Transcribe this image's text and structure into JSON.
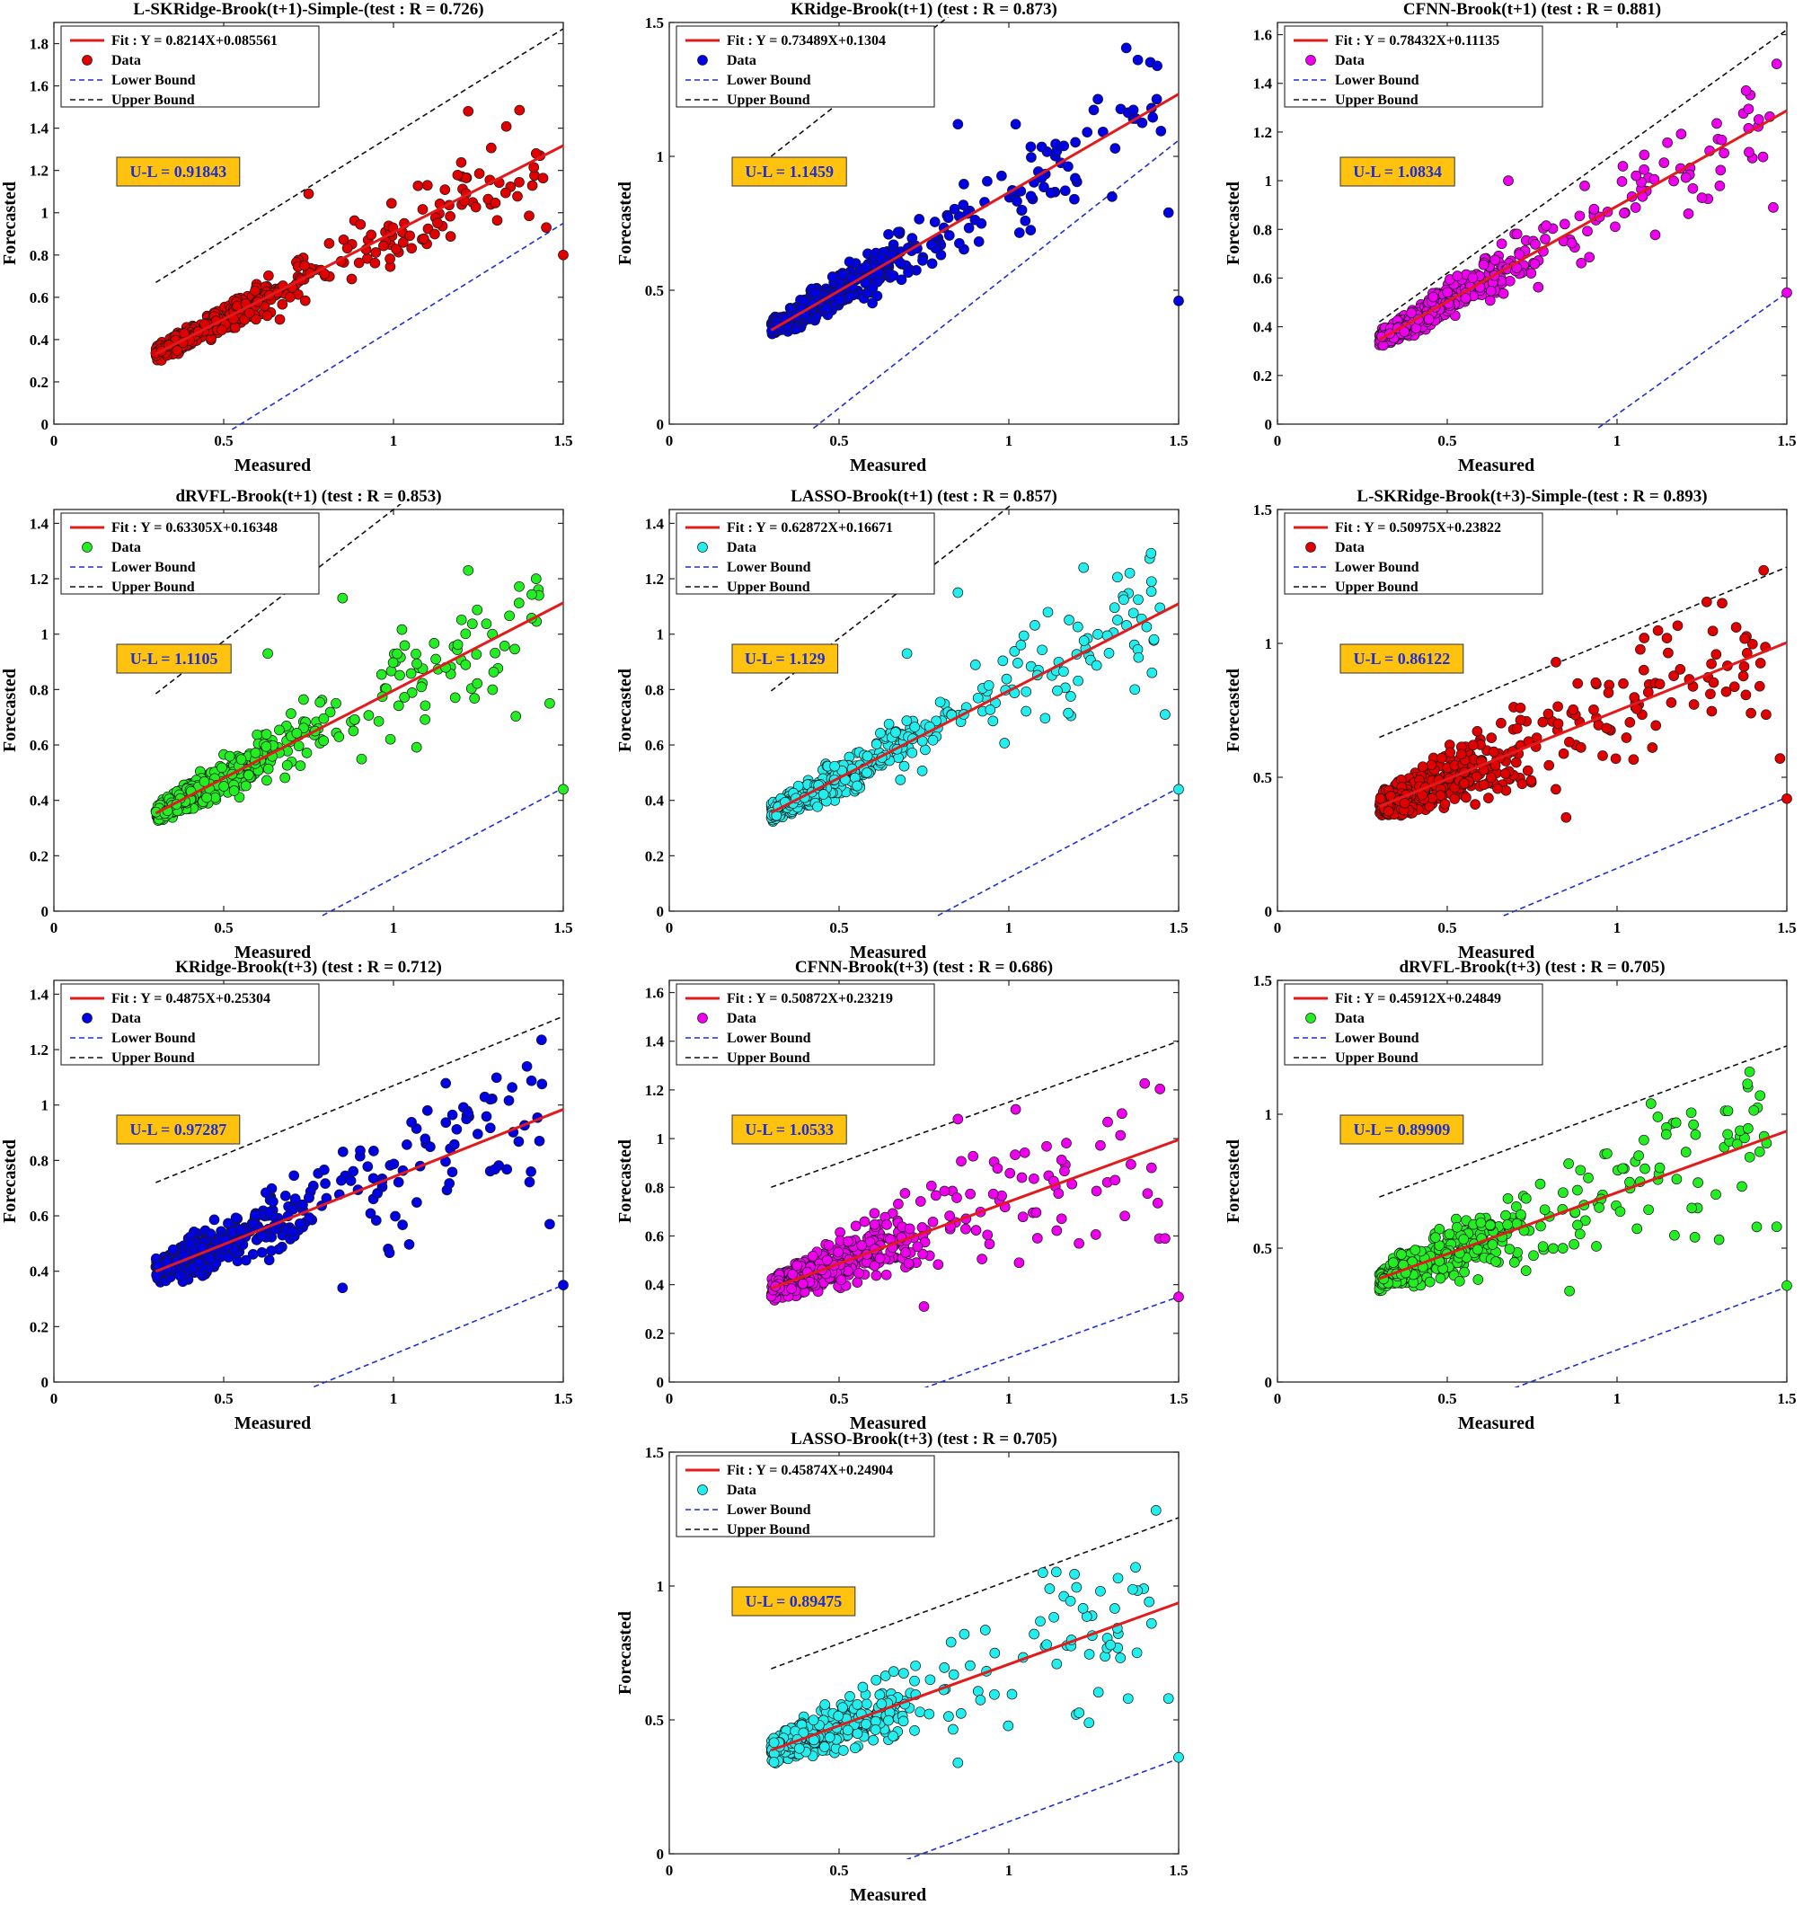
{
  "chart_data": [
    {
      "type": "scatter",
      "title": "L-SKRidge-Brook(t+1)-Simple-(test : R = 0.726)",
      "xlabel": "Measured",
      "ylabel": "Forecasted",
      "xlim": [
        0,
        1.5
      ],
      "ylim": [
        0,
        1.9
      ],
      "xticks": [
        "0",
        "0.5",
        "1",
        "1.5"
      ],
      "yticks": [
        "0",
        "0.2",
        "0.4",
        "0.6",
        "0.8",
        "1",
        "1.2",
        "1.4",
        "1.6",
        "1.8"
      ],
      "fit": {
        "slope": 0.8214,
        "intercept": 0.085561,
        "label": "Fit :  Y = 0.8214X+0.085561"
      },
      "lower_bound": {
        "slope": 1.0,
        "intercept": -0.55
      },
      "upper_bound": {
        "slope": 1.0,
        "intercept": 0.37
      },
      "band_x_start": 0.3,
      "ul_label": "U-L = 0.91843",
      "point_color": "#e00000",
      "spread": 1.0,
      "outliers": [
        [
          1.22,
          1.48
        ],
        [
          1.42,
          1.28
        ],
        [
          1.5,
          0.8
        ],
        [
          1.45,
          0.93
        ],
        [
          0.75,
          1.09
        ],
        [
          1.1,
          1.13
        ]
      ],
      "legend": [
        "Fit :  Y = 0.8214X+0.085561",
        "Data",
        "Lower Bound",
        "Upper Bound"
      ]
    },
    {
      "type": "scatter",
      "title": "KRidge-Brook(t+1) (test : R = 0.873)",
      "xlabel": "Measured",
      "ylabel": "Forecasted",
      "xlim": [
        0,
        1.5
      ],
      "ylim": [
        0,
        1.5
      ],
      "xticks": [
        "0",
        "0.5",
        "1",
        "1.5"
      ],
      "yticks": [
        "0",
        "0.5",
        "1",
        "1.5"
      ],
      "fit": {
        "slope": 0.73489,
        "intercept": 0.1304,
        "label": "Fit :  Y = 0.73489X+0.1304"
      },
      "lower_bound": {
        "slope": 1.0,
        "intercept": -0.44
      },
      "upper_bound": {
        "slope": 1.0,
        "intercept": 0.7
      },
      "band_x_start": 0.3,
      "ul_label": "U-L = 1.1459",
      "point_color": "#0000e6",
      "spread": 1.0,
      "outliers": [
        [
          1.5,
          0.46
        ],
        [
          1.47,
          0.79
        ],
        [
          1.42,
          1.18
        ],
        [
          1.38,
          1.36
        ],
        [
          0.85,
          1.12
        ],
        [
          1.02,
          1.12
        ]
      ],
      "legend": [
        "Fit :  Y = 0.73489X+0.1304",
        "Data",
        "Lower Bound",
        "Upper Bound"
      ]
    },
    {
      "type": "scatter",
      "title": "CFNN-Brook(t+1) (test : R = 0.881)",
      "xlabel": "Measured",
      "ylabel": "Forecasted",
      "xlim": [
        0,
        1.5
      ],
      "ylim": [
        0,
        1.65
      ],
      "xticks": [
        "0",
        "0.5",
        "1",
        "1.5"
      ],
      "yticks": [
        "0",
        "0.2",
        "0.4",
        "0.6",
        "0.8",
        "1",
        "1.2",
        "1.4",
        "1.6"
      ],
      "fit": {
        "slope": 0.78432,
        "intercept": 0.11135,
        "label": "Fit :  Y = 0.78432X+0.11135"
      },
      "lower_bound": {
        "slope": 1.0,
        "intercept": -0.96
      },
      "upper_bound": {
        "slope": 1.0,
        "intercept": 0.12
      },
      "band_x_start": 0.3,
      "ul_label": "U-L = 1.0834",
      "point_color": "#ee00ee",
      "spread": 1.0,
      "outliers": [
        [
          1.5,
          0.54
        ],
        [
          1.46,
          0.89
        ],
        [
          1.47,
          1.48
        ],
        [
          1.38,
          1.37
        ],
        [
          1.25,
          0.93
        ],
        [
          0.68,
          1.0
        ]
      ],
      "legend": [
        "Fit :  Y = 0.78432X+0.11135",
        "Data",
        "Lower Bound",
        "Upper Bound"
      ]
    },
    {
      "type": "scatter",
      "title": "dRVFL-Brook(t+1) (test : R = 0.853)",
      "xlabel": "Measured",
      "ylabel": "Forecasted",
      "xlim": [
        0,
        1.5
      ],
      "ylim": [
        0,
        1.45
      ],
      "xticks": [
        "0",
        "0.5",
        "1",
        "1.5"
      ],
      "yticks": [
        "0",
        "0.2",
        "0.4",
        "0.6",
        "0.8",
        "1",
        "1.2",
        "1.4"
      ],
      "fit": {
        "slope": 0.63305,
        "intercept": 0.16348,
        "label": "Fit :  Y = 0.63305X+0.16348"
      },
      "lower_bound": {
        "slope": 0.65,
        "intercept": -0.53
      },
      "upper_bound": {
        "slope": 0.95,
        "intercept": 0.5
      },
      "band_x_start": 0.3,
      "ul_label": "U-L = 1.1105",
      "point_color": "#22ee22",
      "spread": 1.0,
      "outliers": [
        [
          1.5,
          0.44
        ],
        [
          1.46,
          0.75
        ],
        [
          1.42,
          1.2
        ],
        [
          1.22,
          1.23
        ],
        [
          0.85,
          1.13
        ],
        [
          0.63,
          0.93
        ]
      ],
      "legend": [
        "Fit :  Y = 0.63305X+0.16348",
        "Data",
        "Lower Bound",
        "Upper Bound"
      ]
    },
    {
      "type": "scatter",
      "title": "LASSO-Brook(t+1) (test : R = 0.857)",
      "xlabel": "Measured",
      "ylabel": "Forecasted",
      "xlim": [
        0,
        1.5
      ],
      "ylim": [
        0,
        1.45
      ],
      "xticks": [
        "0",
        "0.5",
        "1",
        "1.5"
      ],
      "yticks": [
        "0",
        "0.2",
        "0.4",
        "0.6",
        "0.8",
        "1",
        "1.2",
        "1.4"
      ],
      "fit": {
        "slope": 0.62872,
        "intercept": 0.16671,
        "label": "Fit :  Y = 0.62872X+0.16671"
      },
      "lower_bound": {
        "slope": 0.65,
        "intercept": -0.53
      },
      "upper_bound": {
        "slope": 0.95,
        "intercept": 0.51
      },
      "band_x_start": 0.3,
      "ul_label": "U-L = 1.129",
      "point_color": "#22eeee",
      "spread": 1.0,
      "outliers": [
        [
          1.5,
          0.44
        ],
        [
          1.46,
          0.71
        ],
        [
          1.42,
          1.19
        ],
        [
          1.22,
          1.24
        ],
        [
          0.85,
          1.15
        ],
        [
          0.7,
          0.93
        ]
      ],
      "legend": [
        "Fit :  Y = 0.62872X+0.16671",
        "Data",
        "Lower Bound",
        "Upper Bound"
      ]
    },
    {
      "type": "scatter",
      "title": "L-SKRidge-Brook(t+3)-Simple-(test : R = 0.893)",
      "xlabel": "Measured",
      "ylabel": "Forecasted",
      "xlim": [
        0,
        1.5
      ],
      "ylim": [
        0,
        1.5
      ],
      "xticks": [
        "0",
        "0.5",
        "1",
        "1.5"
      ],
      "yticks": [
        "0",
        "0.5",
        "1",
        "1.5"
      ],
      "fit": {
        "slope": 0.50975,
        "intercept": 0.23822,
        "label": "Fit :  Y = 0.50975X+0.23822"
      },
      "lower_bound": {
        "slope": 0.53,
        "intercept": -0.37
      },
      "upper_bound": {
        "slope": 0.53,
        "intercept": 0.49
      },
      "band_x_start": 0.3,
      "ul_label": "U-L = 0.86122",
      "point_color": "#e00000",
      "spread": 1.4,
      "outliers": [
        [
          1.5,
          0.42
        ],
        [
          1.48,
          0.57
        ],
        [
          1.42,
          0.84
        ],
        [
          1.08,
          1.02
        ],
        [
          0.85,
          0.35
        ],
        [
          0.82,
          0.93
        ]
      ],
      "legend": [
        "Fit :  Y = 0.50975X+0.23822",
        "Data",
        "Lower Bound",
        "Upper Bound"
      ]
    },
    {
      "type": "scatter",
      "title": "KRidge-Brook(t+3) (test : R = 0.712)",
      "xlabel": "Measured",
      "ylabel": "Forecasted",
      "xlim": [
        0,
        1.5
      ],
      "ylim": [
        0,
        1.45
      ],
      "xticks": [
        "0",
        "0.5",
        "1",
        "1.5"
      ],
      "yticks": [
        "0",
        "0.2",
        "0.4",
        "0.6",
        "0.8",
        "1",
        "1.2",
        "1.4"
      ],
      "fit": {
        "slope": 0.4875,
        "intercept": 0.25304,
        "label": "Fit :  Y = 0.4875X+0.25304"
      },
      "lower_bound": {
        "slope": 0.5,
        "intercept": -0.4
      },
      "upper_bound": {
        "slope": 0.5,
        "intercept": 0.57
      },
      "band_x_start": 0.3,
      "ul_label": "U-L = 0.97287",
      "point_color": "#0000e6",
      "spread": 1.4,
      "outliers": [
        [
          1.5,
          0.35
        ],
        [
          1.46,
          0.57
        ],
        [
          1.43,
          0.87
        ],
        [
          1.22,
          0.97
        ],
        [
          0.85,
          0.34
        ],
        [
          1.1,
          0.98
        ]
      ],
      "legend": [
        "Fit :  Y = 0.4875X+0.25304",
        "Data",
        "Lower Bound",
        "Upper Bound"
      ]
    },
    {
      "type": "scatter",
      "title": "CFNN-Brook(t+3) (test : R = 0.686)",
      "xlabel": "Measured",
      "ylabel": "Forecasted",
      "xlim": [
        0,
        1.5
      ],
      "ylim": [
        0,
        1.65
      ],
      "xticks": [
        "0",
        "0.5",
        "1",
        "1.5"
      ],
      "yticks": [
        "0",
        "0.2",
        "0.4",
        "0.6",
        "0.8",
        "1",
        "1.2",
        "1.4",
        "1.6"
      ],
      "fit": {
        "slope": 0.50872,
        "intercept": 0.23219,
        "label": "Fit :  Y = 0.50872X+0.23219"
      },
      "lower_bound": {
        "slope": 0.5,
        "intercept": -0.4
      },
      "upper_bound": {
        "slope": 0.5,
        "intercept": 0.65
      },
      "band_x_start": 0.3,
      "ul_label": "U-L = 1.0533",
      "point_color": "#ee00ee",
      "spread": 1.5,
      "outliers": [
        [
          1.5,
          0.35
        ],
        [
          1.46,
          0.59
        ],
        [
          1.42,
          0.88
        ],
        [
          1.02,
          1.12
        ],
        [
          0.85,
          1.08
        ],
        [
          0.75,
          0.31
        ]
      ],
      "legend": [
        "Fit :  Y = 0.50872X+0.23219",
        "Data",
        "Lower Bound",
        "Upper Bound"
      ]
    },
    {
      "type": "scatter",
      "title": "dRVFL-Brook(t+3) (test : R = 0.705)",
      "xlabel": "Measured",
      "ylabel": "Forecasted",
      "xlim": [
        0,
        1.5
      ],
      "ylim": [
        0,
        1.5
      ],
      "xticks": [
        "0",
        "0.5",
        "1",
        "1.5"
      ],
      "yticks": [
        "0",
        "0.5",
        "1",
        "1.5"
      ],
      "fit": {
        "slope": 0.45912,
        "intercept": 0.24849,
        "label": "Fit :  Y = 0.45912X+0.24849"
      },
      "lower_bound": {
        "slope": 0.47,
        "intercept": -0.35
      },
      "upper_bound": {
        "slope": 0.47,
        "intercept": 0.55
      },
      "band_x_start": 0.3,
      "ul_label": "U-L = 0.89909",
      "point_color": "#22ee22",
      "spread": 1.4,
      "outliers": [
        [
          1.5,
          0.36
        ],
        [
          1.47,
          0.58
        ],
        [
          1.42,
          0.86
        ],
        [
          1.1,
          1.04
        ],
        [
          0.86,
          0.34
        ],
        [
          1.12,
          0.99
        ]
      ],
      "legend": [
        "Fit :  Y = 0.45912X+0.24849",
        "Data",
        "Lower Bound",
        "Upper Bound"
      ]
    },
    {
      "type": "scatter",
      "title": "LASSO-Brook(t+3) (test : R = 0.705)",
      "xlabel": "Measured",
      "ylabel": "Forecasted",
      "xlim": [
        0,
        1.5
      ],
      "ylim": [
        0,
        1.5
      ],
      "xticks": [
        "0",
        "0.5",
        "1",
        "1.5"
      ],
      "yticks": [
        "0",
        "0.5",
        "1",
        "1.5"
      ],
      "fit": {
        "slope": 0.45874,
        "intercept": 0.24904,
        "label": "Fit :  Y = 0.45874X+0.24904"
      },
      "lower_bound": {
        "slope": 0.47,
        "intercept": -0.35
      },
      "upper_bound": {
        "slope": 0.47,
        "intercept": 0.55
      },
      "band_x_start": 0.3,
      "ul_label": "U-L = 0.89475",
      "point_color": "#22eeee",
      "spread": 1.4,
      "outliers": [
        [
          1.5,
          0.36
        ],
        [
          1.47,
          0.58
        ],
        [
          1.42,
          0.86
        ],
        [
          1.1,
          1.05
        ],
        [
          0.85,
          0.34
        ],
        [
          1.12,
          0.99
        ]
      ],
      "legend": [
        "Fit :  Y = 0.45874X+0.24904",
        "Data",
        "Lower Bound",
        "Upper Bound"
      ]
    }
  ]
}
